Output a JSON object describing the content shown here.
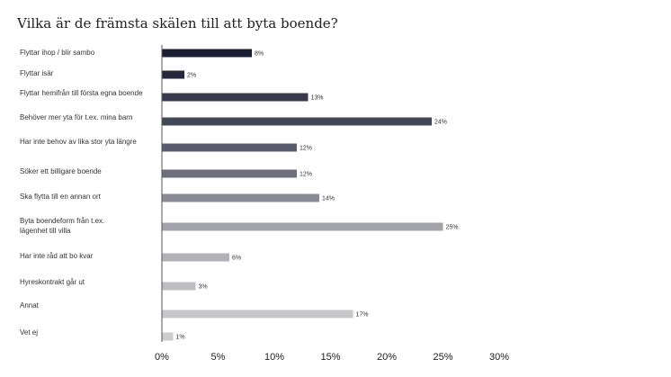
{
  "chart_data": {
    "type": "bar",
    "orientation": "horizontal",
    "title": "Vilka är de främsta skälen till att byta boende?",
    "categories": [
      [
        "Flyttar ihop / blir sambo"
      ],
      [
        "Flyttar isär"
      ],
      [
        "Flyttar hemifrån till första egna boende"
      ],
      [
        "Behöver mer yta för t.ex. mina barn"
      ],
      [
        "Har inte behov av lika stor yta längre"
      ],
      [
        "Söker ett billigare boende"
      ],
      [
        "Ska flytta till en annan ort"
      ],
      [
        "Byta boendeform från t.ex.",
        "lägenhet till villa"
      ],
      [
        "Har inte råd att bo kvar"
      ],
      [
        "Hyreskontrakt går ut"
      ],
      [
        "Annat"
      ],
      [
        "Vet ej"
      ]
    ],
    "values": [
      8,
      2,
      13,
      24,
      12,
      12,
      14,
      25,
      6,
      3,
      17,
      1
    ],
    "value_labels": [
      "8%",
      "2%",
      "13%",
      "24%",
      "12%",
      "12%",
      "14%",
      "25%",
      "6%",
      "3%",
      "17%",
      "1%"
    ],
    "bar_colors": [
      "#1c1e33",
      "#262839",
      "#383a4c",
      "#44465a",
      "#5a5c6d",
      "#6e6f7d",
      "#8a8b96",
      "#a3a3ac",
      "#b1b1b8",
      "#bdbdc2",
      "#c7c7cb",
      "#cdcdd1"
    ],
    "xlim": [
      0,
      30
    ],
    "xticks": [
      "0%",
      "5%",
      "10%",
      "15%",
      "20%",
      "25%",
      "30%"
    ],
    "xlabel": "",
    "ylabel": "",
    "grid": false,
    "legend": false
  }
}
